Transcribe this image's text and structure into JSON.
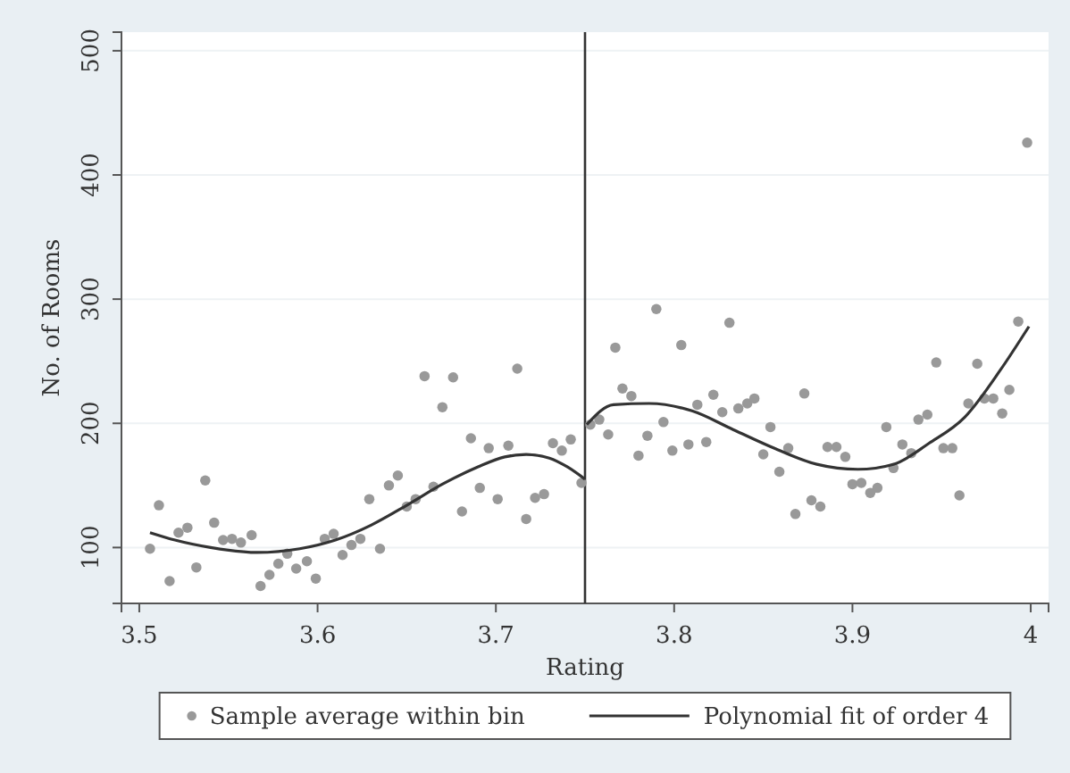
{
  "chart_data": {
    "type": "scatter",
    "xlabel": "Rating",
    "ylabel": "No. of Rooms",
    "xlim": [
      3.49,
      4.01
    ],
    "ylim": [
      55,
      515
    ],
    "xticks": [
      3.5,
      3.6,
      3.7,
      3.8,
      3.9,
      4
    ],
    "yticks": [
      100,
      200,
      300,
      400,
      500
    ],
    "grid": "y",
    "legend": "bottom",
    "ref_lines": [
      {
        "axis": "x",
        "value": 3.75,
        "color": "#333333"
      }
    ],
    "series": [
      {
        "name": "Sample average within bin",
        "marker": "circle",
        "color": "#999999",
        "x": [
          3.506,
          3.511,
          3.517,
          3.522,
          3.527,
          3.532,
          3.537,
          3.542,
          3.547,
          3.552,
          3.557,
          3.563,
          3.568,
          3.573,
          3.578,
          3.583,
          3.588,
          3.594,
          3.599,
          3.604,
          3.609,
          3.614,
          3.619,
          3.624,
          3.629,
          3.635,
          3.64,
          3.645,
          3.65,
          3.655,
          3.66,
          3.665,
          3.67,
          3.676,
          3.681,
          3.686,
          3.691,
          3.696,
          3.701,
          3.707,
          3.712,
          3.717,
          3.722,
          3.727,
          3.732,
          3.737,
          3.742,
          3.748,
          3.753,
          3.758,
          3.763,
          3.767,
          3.771,
          3.776,
          3.78,
          3.785,
          3.79,
          3.794,
          3.799,
          3.804,
          3.808,
          3.813,
          3.818,
          3.822,
          3.827,
          3.831,
          3.836,
          3.841,
          3.845,
          3.85,
          3.854,
          3.859,
          3.864,
          3.868,
          3.873,
          3.877,
          3.882,
          3.886,
          3.891,
          3.896,
          3.9,
          3.905,
          3.91,
          3.914,
          3.919,
          3.923,
          3.928,
          3.933,
          3.937,
          3.942,
          3.947,
          3.951,
          3.956,
          3.96,
          3.965,
          3.97,
          3.974,
          3.979,
          3.984,
          3.988,
          3.993,
          3.998
        ],
        "values": [
          99,
          134,
          73,
          112,
          116,
          84,
          154,
          120,
          106,
          107,
          104,
          110,
          69,
          78,
          87,
          95,
          83,
          89,
          75,
          107,
          111,
          94,
          102,
          107,
          139,
          99,
          150,
          158,
          133,
          139,
          238,
          149,
          213,
          237,
          129,
          188,
          148,
          180,
          139,
          182,
          244,
          123,
          140,
          143,
          184,
          178,
          187,
          152,
          199,
          203,
          191,
          261,
          228,
          222,
          174,
          190,
          292,
          201,
          178,
          263,
          183,
          215,
          185,
          223,
          209,
          281,
          212,
          216,
          220,
          175,
          197,
          161,
          180,
          127,
          224,
          138,
          133,
          181,
          181,
          173,
          151,
          152,
          144,
          148,
          197,
          164,
          183,
          176,
          203,
          207,
          249,
          180,
          180,
          142,
          216,
          248,
          220,
          220,
          208,
          227,
          282,
          426
        ]
      },
      {
        "name": "Polynomial fit of order 4",
        "type": "line",
        "marker": "none",
        "color": "#333333",
        "x": [
          3.506,
          3.52,
          3.54,
          3.566,
          3.59,
          3.61,
          3.63,
          3.65,
          3.67,
          3.69,
          3.705,
          3.717,
          3.73,
          3.74,
          3.75
        ],
        "values": [
          112,
          106,
          100,
          96,
          99,
          106,
          118,
          134,
          151,
          165,
          173,
          175,
          172,
          165,
          155
        ]
      },
      {
        "type": "line",
        "marker": "none",
        "color": "#333333",
        "x": [
          3.751,
          3.766,
          3.786,
          3.81,
          3.833,
          3.856,
          3.88,
          3.903,
          3.923,
          3.943,
          3.963,
          3.983,
          3.999
        ],
        "values": [
          199,
          215,
          216,
          210,
          195,
          180,
          167,
          163,
          167,
          184,
          205,
          243,
          278
        ]
      }
    ]
  }
}
